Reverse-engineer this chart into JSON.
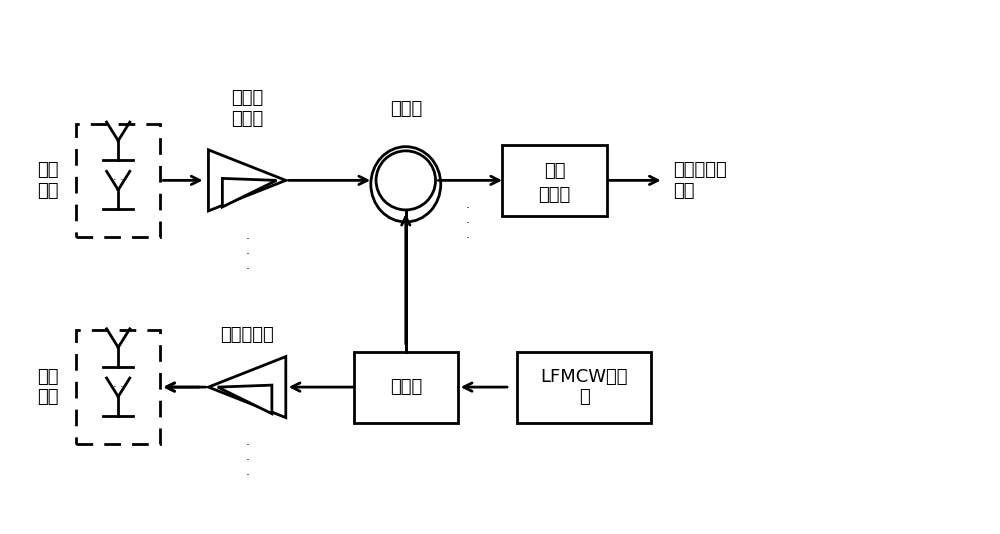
{
  "bg_color": "#ffffff",
  "line_color": "#000000",
  "text_color": "#000000",
  "font_size": 13,
  "labels": {
    "rx_antenna": "接收\n天线",
    "lna": "低噪声\n放大器",
    "mixer": "混频器",
    "lpf_line1": "低通",
    "lpf_line2": "滤波器",
    "output": "多通道基带\n信号",
    "tx_antenna": "发射\n天线",
    "pa": "功率放大器",
    "power_divider": "功分器",
    "lfmcw": "LFMCW信号\n源"
  }
}
